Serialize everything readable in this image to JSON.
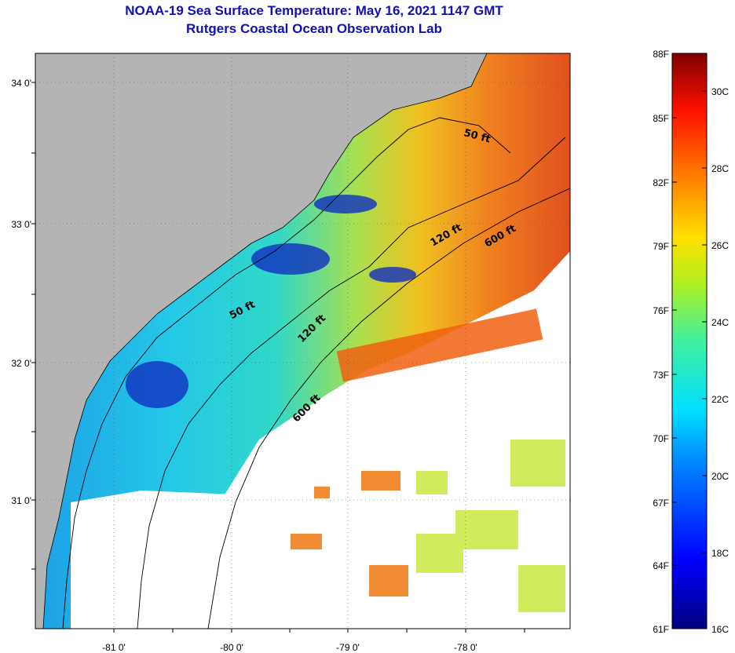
{
  "title_line1": "NOAA-19 Sea Surface Temperature:  May 16, 2021 1147 GMT",
  "title_line2": "Rutgers Coastal Ocean Observation Lab",
  "lat_labels": [
    "34 0'",
    "33 0'",
    "32 0'",
    "31 0'"
  ],
  "lon_labels": [
    "-81 0'",
    "-80 0'",
    "-79 0'",
    "-78 0'"
  ],
  "colorbar_f": [
    "88F",
    "85F",
    "82F",
    "79F",
    "76F",
    "73F",
    "70F",
    "67F",
    "64F",
    "61F"
  ],
  "colorbar_c": [
    "30C",
    "28C",
    "26C",
    "24C",
    "22C",
    "20C",
    "18C",
    "16C"
  ],
  "contour_labels": [
    "50 ft",
    "50 ft",
    "120 ft",
    "120 ft",
    "600 ft",
    "600 ft"
  ],
  "colors": {
    "land": "#b4b4b4",
    "cloud": "#ffffff",
    "title": "#1010b4"
  }
}
